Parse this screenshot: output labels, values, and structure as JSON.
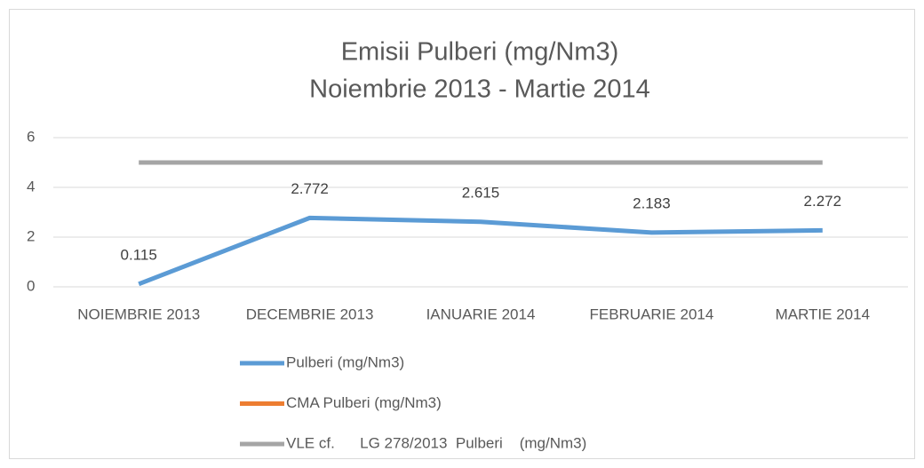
{
  "chart_data": {
    "type": "line",
    "title": "Emisii Pulberi (mg/Nm3)",
    "subtitle": "Noiembrie 2013 - Martie 2014",
    "categories": [
      "NOIEMBRIE 2013",
      "DECEMBRIE 2013",
      "IANUARIE 2014",
      "FEBRUARIE 2014",
      "MARTIE 2014"
    ],
    "series": [
      {
        "name": "Pulberi (mg/Nm3)",
        "color": "#5b9bd5",
        "values": [
          0.115,
          2.772,
          2.615,
          2.183,
          2.272
        ],
        "data_labels": true
      },
      {
        "name": "CMA Pulberi (mg/Nm3)",
        "color": "#ed7d31",
        "values": [
          null,
          null,
          null,
          null,
          null
        ]
      },
      {
        "name": "VLE cf.      LG 278/2013  Pulberi    (mg/Nm3)",
        "color": "#a5a5a5",
        "values": [
          5,
          5,
          5,
          5,
          5
        ]
      }
    ],
    "ylim": [
      0,
      6
    ],
    "yticks": [
      0,
      2,
      4,
      6
    ],
    "grid": true,
    "legend": "bottom"
  }
}
